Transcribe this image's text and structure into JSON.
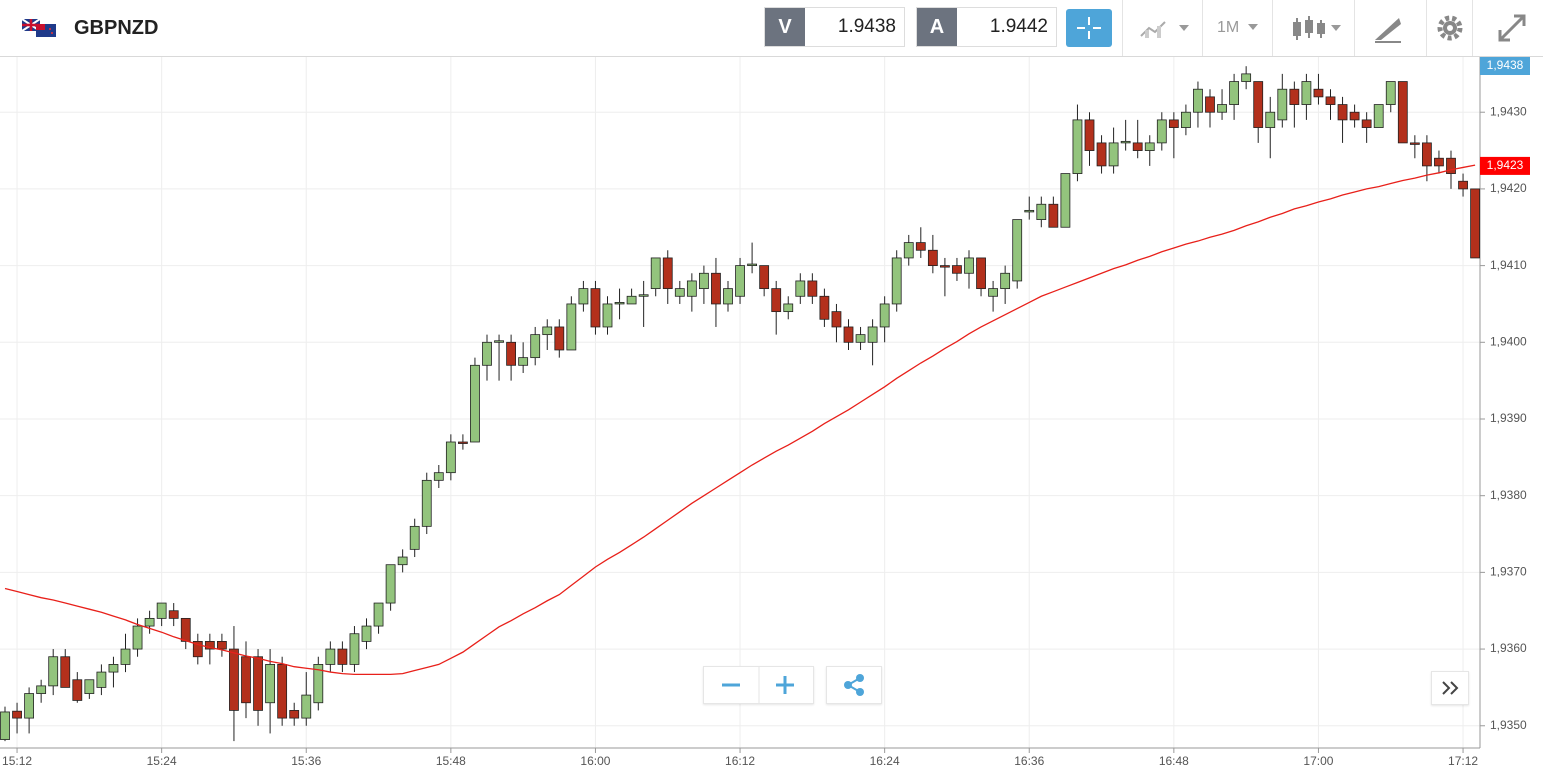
{
  "header": {
    "symbol": "GBPNZD",
    "sell_label": "V",
    "sell_price": "1.9438",
    "buy_label": "A",
    "buy_price": "1.9442",
    "timeframe": "1M"
  },
  "chart_data": {
    "type": "candlestick",
    "categories": [
      null,
      "15:12",
      null,
      null,
      null,
      null,
      null,
      null,
      null,
      null,
      null,
      null,
      null,
      "15:24",
      null,
      null,
      null,
      null,
      null,
      null,
      null,
      null,
      null,
      null,
      null,
      "15:36",
      null,
      null,
      null,
      null,
      null,
      null,
      null,
      null,
      null,
      null,
      null,
      "15:48",
      null,
      null,
      null,
      null,
      null,
      null,
      null,
      null,
      null,
      null,
      null,
      "16:00",
      null,
      null,
      null,
      null,
      null,
      null,
      null,
      null,
      null,
      null,
      null,
      "16:12",
      null,
      null,
      null,
      null,
      null,
      null,
      null,
      null,
      null,
      null,
      null,
      "16:24",
      null,
      null,
      null,
      null,
      null,
      null,
      null,
      null,
      null,
      null,
      null,
      "16:36",
      null,
      null,
      null,
      null,
      null,
      null,
      null,
      null,
      null,
      null,
      null,
      "16:48",
      null,
      null,
      null,
      null,
      null,
      null,
      null,
      null,
      null,
      null,
      null,
      "17:00",
      null,
      null,
      null,
      null,
      null,
      null,
      null,
      null,
      null,
      null,
      null,
      "17:12",
      null
    ],
    "open": [
      1.93482,
      1.93519,
      1.9351,
      1.93542,
      1.93552,
      1.9359,
      1.9356,
      1.93542,
      1.9355,
      1.9357,
      1.9358,
      1.936,
      1.9363,
      1.9364,
      1.9365,
      1.9364,
      1.9361,
      1.9361,
      1.9361,
      1.936,
      1.9359,
      1.9359,
      1.9353,
      1.9358,
      1.9352,
      1.9351,
      1.9353,
      1.9358,
      1.936,
      1.9358,
      1.9361,
      1.9363,
      1.9366,
      1.9371,
      1.9373,
      1.9376,
      1.9382,
      1.9383,
      1.9387,
      1.9387,
      1.9397,
      1.94,
      1.94,
      1.9397,
      1.9398,
      1.9401,
      1.9402,
      1.9399,
      1.9405,
      1.9407,
      1.9402,
      1.9405,
      1.9405,
      1.9406,
      1.9407,
      1.9411,
      1.9406,
      1.9406,
      1.9407,
      1.9409,
      1.9405,
      1.9406,
      1.941,
      1.941,
      1.9407,
      1.9404,
      1.9406,
      1.9408,
      1.9406,
      1.9404,
      1.9402,
      1.94,
      1.94,
      1.9402,
      1.9405,
      1.9411,
      1.9413,
      1.9412,
      1.941,
      1.941,
      1.9409,
      1.9411,
      1.9406,
      1.9407,
      1.9408,
      1.9417,
      1.9416,
      1.9418,
      1.9415,
      1.9422,
      1.9429,
      1.9426,
      1.9423,
      1.9426,
      1.9426,
      1.9425,
      1.9426,
      1.9429,
      1.9428,
      1.943,
      1.9432,
      1.943,
      1.9431,
      1.9434,
      1.9434,
      1.9428,
      1.9429,
      1.9433,
      1.9431,
      1.9433,
      1.9432,
      1.9431,
      1.943,
      1.9429,
      1.9428,
      1.9431,
      1.9434,
      1.9426,
      1.9426,
      1.9424,
      1.9424,
      1.9421,
      1.942
    ],
    "high": [
      1.93525,
      1.9353,
      1.9355,
      1.9356,
      1.936,
      1.936,
      1.9357,
      1.9356,
      1.9358,
      1.9359,
      1.9362,
      1.9364,
      1.9365,
      1.9366,
      1.9366,
      1.9364,
      1.9362,
      1.9362,
      1.9362,
      1.9363,
      1.9361,
      1.936,
      1.936,
      1.9359,
      1.9353,
      1.9357,
      1.9359,
      1.9361,
      1.9361,
      1.9363,
      1.9364,
      1.9366,
      1.9371,
      1.9373,
      1.9377,
      1.9383,
      1.9384,
      1.9388,
      1.9388,
      1.9398,
      1.9401,
      1.9401,
      1.9401,
      1.94,
      1.9402,
      1.9403,
      1.9403,
      1.9406,
      1.9408,
      1.9408,
      1.9406,
      1.9407,
      1.9407,
      1.9408,
      1.9411,
      1.9412,
      1.9408,
      1.9409,
      1.941,
      1.9411,
      1.9408,
      1.9411,
      1.9413,
      1.941,
      1.9408,
      1.9406,
      1.9409,
      1.9409,
      1.9407,
      1.9405,
      1.9403,
      1.9402,
      1.9403,
      1.9406,
      1.9412,
      1.9414,
      1.9415,
      1.9414,
      1.9411,
      1.9411,
      1.9412,
      1.9411,
      1.9408,
      1.941,
      1.9416,
      1.9419,
      1.9419,
      1.9419,
      1.9422,
      1.9431,
      1.943,
      1.9427,
      1.9428,
      1.9429,
      1.9429,
      1.9427,
      1.943,
      1.943,
      1.9431,
      1.9434,
      1.9433,
      1.9433,
      1.9435,
      1.9436,
      1.9434,
      1.9432,
      1.9435,
      1.9434,
      1.9435,
      1.9435,
      1.9433,
      1.9432,
      1.9431,
      1.943,
      1.9431,
      1.9434,
      1.9434,
      1.9427,
      1.9427,
      1.9425,
      1.9425,
      1.9422,
      1.942
    ],
    "low": [
      1.9348,
      1.9349,
      1.9349,
      1.9353,
      1.9354,
      1.9355,
      1.9353,
      1.93535,
      1.9354,
      1.9355,
      1.9357,
      1.9359,
      1.9362,
      1.9363,
      1.9363,
      1.936,
      1.9358,
      1.9358,
      1.9359,
      1.9348,
      1.9351,
      1.935,
      1.9349,
      1.935,
      1.935,
      1.935,
      1.9352,
      1.9357,
      1.9357,
      1.9357,
      1.936,
      1.9362,
      1.9365,
      1.937,
      1.9372,
      1.9375,
      1.9381,
      1.9382,
      1.9386,
      1.9387,
      1.9395,
      1.9395,
      1.9395,
      1.9396,
      1.9397,
      1.9399,
      1.9398,
      1.9399,
      1.9404,
      1.9401,
      1.9401,
      1.9403,
      1.9405,
      1.9402,
      1.9406,
      1.9405,
      1.9405,
      1.9404,
      1.9405,
      1.9402,
      1.9404,
      1.9405,
      1.9409,
      1.9406,
      1.9401,
      1.9403,
      1.9405,
      1.9405,
      1.9402,
      1.94,
      1.9399,
      1.9399,
      1.9397,
      1.94,
      1.9404,
      1.941,
      1.9411,
      1.9409,
      1.9406,
      1.9408,
      1.9407,
      1.9406,
      1.9404,
      1.9405,
      1.9407,
      1.9416,
      1.9415,
      1.9415,
      1.9415,
      1.9421,
      1.9423,
      1.9422,
      1.9422,
      1.9425,
      1.9424,
      1.9423,
      1.9425,
      1.9424,
      1.9427,
      1.9428,
      1.9428,
      1.9429,
      1.9429,
      1.9433,
      1.9426,
      1.9424,
      1.9428,
      1.9428,
      1.9429,
      1.9431,
      1.9429,
      1.9426,
      1.9428,
      1.9426,
      1.9428,
      1.943,
      1.9426,
      1.9424,
      1.9421,
      1.9422,
      1.942,
      1.9419,
      1.9411
    ],
    "close": [
      1.93518,
      1.9351,
      1.93542,
      1.93552,
      1.9359,
      1.9355,
      1.93533,
      1.9356,
      1.9357,
      1.9358,
      1.936,
      1.9363,
      1.9364,
      1.9366,
      1.9364,
      1.9361,
      1.9359,
      1.936,
      1.936,
      1.9352,
      1.9353,
      1.9352,
      1.9358,
      1.9351,
      1.9351,
      1.9354,
      1.9358,
      1.936,
      1.9358,
      1.9362,
      1.9363,
      1.9366,
      1.9371,
      1.9372,
      1.9376,
      1.9382,
      1.9383,
      1.9387,
      1.93868,
      1.9397,
      1.94,
      1.94002,
      1.9397,
      1.9398,
      1.9401,
      1.9402,
      1.9399,
      1.9405,
      1.9407,
      1.9402,
      1.9405,
      1.94052,
      1.9406,
      1.94062,
      1.9411,
      1.9407,
      1.9407,
      1.9408,
      1.9409,
      1.9405,
      1.9407,
      1.941,
      1.94102,
      1.9407,
      1.9404,
      1.9405,
      1.9408,
      1.9406,
      1.9403,
      1.9402,
      1.94,
      1.9401,
      1.9402,
      1.9405,
      1.9411,
      1.9413,
      1.9412,
      1.941,
      1.94098,
      1.9409,
      1.9411,
      1.9407,
      1.9407,
      1.9409,
      1.9416,
      1.94172,
      1.9418,
      1.9415,
      1.9422,
      1.9429,
      1.9425,
      1.9423,
      1.9426,
      1.94262,
      1.9425,
      1.9426,
      1.9429,
      1.9428,
      1.943,
      1.9433,
      1.943,
      1.9431,
      1.9434,
      1.9435,
      1.9428,
      1.943,
      1.9433,
      1.9431,
      1.9434,
      1.9432,
      1.9431,
      1.9429,
      1.9429,
      1.9428,
      1.9431,
      1.9434,
      1.9426,
      1.94258,
      1.9423,
      1.9423,
      1.9422,
      1.942,
      1.9411
    ],
    "up_color": "#93c47d",
    "down_color": "#b3301c",
    "moving_average": {
      "color": "#e8201a",
      "values": [
        1.93679,
        1.93675,
        1.93671,
        1.93667,
        1.93664,
        1.9366,
        1.93656,
        1.93652,
        1.93648,
        1.93643,
        1.93638,
        1.93632,
        1.93627,
        1.93622,
        1.93616,
        1.93611,
        1.93606,
        1.93602,
        1.93599,
        1.93595,
        1.93591,
        1.93588,
        1.93584,
        1.93581,
        1.93577,
        1.93575,
        1.93573,
        1.9357,
        1.93568,
        1.93567,
        1.93567,
        1.93567,
        1.93567,
        1.93568,
        1.93572,
        1.93576,
        1.9358,
        1.93588,
        1.93596,
        1.93607,
        1.93618,
        1.93629,
        1.93637,
        1.93646,
        1.93654,
        1.93663,
        1.93671,
        1.93683,
        1.93695,
        1.93707,
        1.93717,
        1.93726,
        1.93736,
        1.93746,
        1.93757,
        1.93768,
        1.93779,
        1.9379,
        1.938,
        1.9381,
        1.9382,
        1.9383,
        1.9384,
        1.93849,
        1.93858,
        1.93866,
        1.93875,
        1.93884,
        1.93894,
        1.93903,
        1.93912,
        1.93922,
        1.93932,
        1.93942,
        1.93953,
        1.93963,
        1.93973,
        1.93982,
        1.93992,
        1.94001,
        1.94011,
        1.9402,
        1.94028,
        1.94036,
        1.94044,
        1.94052,
        1.9406,
        1.94066,
        1.94072,
        1.94078,
        1.94084,
        1.9409,
        1.94096,
        1.94101,
        1.94107,
        1.94112,
        1.94118,
        1.94123,
        1.94128,
        1.94132,
        1.94137,
        1.94141,
        1.94146,
        1.94152,
        1.94157,
        1.94163,
        1.94168,
        1.94174,
        1.94178,
        1.94183,
        1.94187,
        1.94192,
        1.94196,
        1.942,
        1.94203,
        1.94207,
        1.94211,
        1.94214,
        1.94218,
        1.94221,
        1.94225,
        1.94228,
        1.94231
      ]
    },
    "ylim": [
      1.93471,
      1.94372
    ],
    "yticks": [
      {
        "value": 1.935,
        "label": "1,9350"
      },
      {
        "value": 1.936,
        "label": "1,9360"
      },
      {
        "value": 1.937,
        "label": "1,9370"
      },
      {
        "value": 1.938,
        "label": "1,9380"
      },
      {
        "value": 1.939,
        "label": "1,9390"
      },
      {
        "value": 1.94,
        "label": "1,9400"
      },
      {
        "value": 1.941,
        "label": "1,9410"
      },
      {
        "value": 1.942,
        "label": "1,9420"
      },
      {
        "value": 1.943,
        "label": "1,9430"
      }
    ],
    "price_tags": [
      {
        "value": 1.9438,
        "label": "1,9438",
        "color": "#4ea5d9"
      },
      {
        "value": 1.9423,
        "label": "1,9423",
        "color": "#ff0000"
      }
    ],
    "grid": true
  }
}
